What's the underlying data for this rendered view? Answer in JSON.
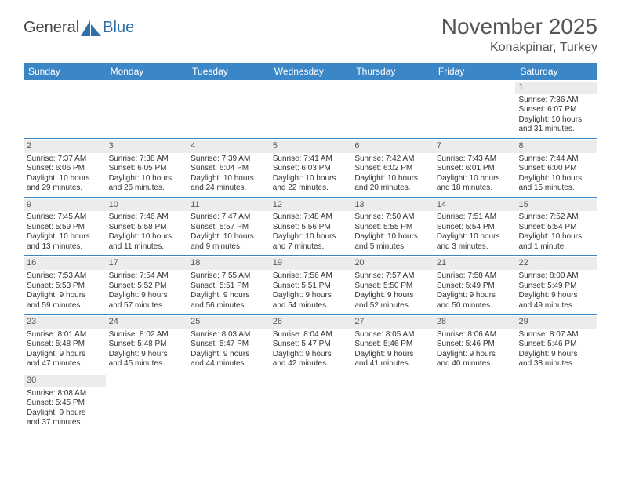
{
  "logo": {
    "text1": "General",
    "text2": "Blue"
  },
  "title": "November 2025",
  "location": "Konakpinar, Turkey",
  "colors": {
    "header_bg": "#3b86c6",
    "header_text": "#ffffff",
    "daynum_bg": "#ececec",
    "border": "#3b86c6",
    "body_text": "#333333"
  },
  "dayHeaders": [
    "Sunday",
    "Monday",
    "Tuesday",
    "Wednesday",
    "Thursday",
    "Friday",
    "Saturday"
  ],
  "weeks": [
    [
      null,
      null,
      null,
      null,
      null,
      null,
      {
        "n": "1",
        "sunrise": "Sunrise: 7:36 AM",
        "sunset": "Sunset: 6:07 PM",
        "d1": "Daylight: 10 hours",
        "d2": "and 31 minutes."
      }
    ],
    [
      {
        "n": "2",
        "sunrise": "Sunrise: 7:37 AM",
        "sunset": "Sunset: 6:06 PM",
        "d1": "Daylight: 10 hours",
        "d2": "and 29 minutes."
      },
      {
        "n": "3",
        "sunrise": "Sunrise: 7:38 AM",
        "sunset": "Sunset: 6:05 PM",
        "d1": "Daylight: 10 hours",
        "d2": "and 26 minutes."
      },
      {
        "n": "4",
        "sunrise": "Sunrise: 7:39 AM",
        "sunset": "Sunset: 6:04 PM",
        "d1": "Daylight: 10 hours",
        "d2": "and 24 minutes."
      },
      {
        "n": "5",
        "sunrise": "Sunrise: 7:41 AM",
        "sunset": "Sunset: 6:03 PM",
        "d1": "Daylight: 10 hours",
        "d2": "and 22 minutes."
      },
      {
        "n": "6",
        "sunrise": "Sunrise: 7:42 AM",
        "sunset": "Sunset: 6:02 PM",
        "d1": "Daylight: 10 hours",
        "d2": "and 20 minutes."
      },
      {
        "n": "7",
        "sunrise": "Sunrise: 7:43 AM",
        "sunset": "Sunset: 6:01 PM",
        "d1": "Daylight: 10 hours",
        "d2": "and 18 minutes."
      },
      {
        "n": "8",
        "sunrise": "Sunrise: 7:44 AM",
        "sunset": "Sunset: 6:00 PM",
        "d1": "Daylight: 10 hours",
        "d2": "and 15 minutes."
      }
    ],
    [
      {
        "n": "9",
        "sunrise": "Sunrise: 7:45 AM",
        "sunset": "Sunset: 5:59 PM",
        "d1": "Daylight: 10 hours",
        "d2": "and 13 minutes."
      },
      {
        "n": "10",
        "sunrise": "Sunrise: 7:46 AM",
        "sunset": "Sunset: 5:58 PM",
        "d1": "Daylight: 10 hours",
        "d2": "and 11 minutes."
      },
      {
        "n": "11",
        "sunrise": "Sunrise: 7:47 AM",
        "sunset": "Sunset: 5:57 PM",
        "d1": "Daylight: 10 hours",
        "d2": "and 9 minutes."
      },
      {
        "n": "12",
        "sunrise": "Sunrise: 7:48 AM",
        "sunset": "Sunset: 5:56 PM",
        "d1": "Daylight: 10 hours",
        "d2": "and 7 minutes."
      },
      {
        "n": "13",
        "sunrise": "Sunrise: 7:50 AM",
        "sunset": "Sunset: 5:55 PM",
        "d1": "Daylight: 10 hours",
        "d2": "and 5 minutes."
      },
      {
        "n": "14",
        "sunrise": "Sunrise: 7:51 AM",
        "sunset": "Sunset: 5:54 PM",
        "d1": "Daylight: 10 hours",
        "d2": "and 3 minutes."
      },
      {
        "n": "15",
        "sunrise": "Sunrise: 7:52 AM",
        "sunset": "Sunset: 5:54 PM",
        "d1": "Daylight: 10 hours",
        "d2": "and 1 minute."
      }
    ],
    [
      {
        "n": "16",
        "sunrise": "Sunrise: 7:53 AM",
        "sunset": "Sunset: 5:53 PM",
        "d1": "Daylight: 9 hours",
        "d2": "and 59 minutes."
      },
      {
        "n": "17",
        "sunrise": "Sunrise: 7:54 AM",
        "sunset": "Sunset: 5:52 PM",
        "d1": "Daylight: 9 hours",
        "d2": "and 57 minutes."
      },
      {
        "n": "18",
        "sunrise": "Sunrise: 7:55 AM",
        "sunset": "Sunset: 5:51 PM",
        "d1": "Daylight: 9 hours",
        "d2": "and 56 minutes."
      },
      {
        "n": "19",
        "sunrise": "Sunrise: 7:56 AM",
        "sunset": "Sunset: 5:51 PM",
        "d1": "Daylight: 9 hours",
        "d2": "and 54 minutes."
      },
      {
        "n": "20",
        "sunrise": "Sunrise: 7:57 AM",
        "sunset": "Sunset: 5:50 PM",
        "d1": "Daylight: 9 hours",
        "d2": "and 52 minutes."
      },
      {
        "n": "21",
        "sunrise": "Sunrise: 7:58 AM",
        "sunset": "Sunset: 5:49 PM",
        "d1": "Daylight: 9 hours",
        "d2": "and 50 minutes."
      },
      {
        "n": "22",
        "sunrise": "Sunrise: 8:00 AM",
        "sunset": "Sunset: 5:49 PM",
        "d1": "Daylight: 9 hours",
        "d2": "and 49 minutes."
      }
    ],
    [
      {
        "n": "23",
        "sunrise": "Sunrise: 8:01 AM",
        "sunset": "Sunset: 5:48 PM",
        "d1": "Daylight: 9 hours",
        "d2": "and 47 minutes."
      },
      {
        "n": "24",
        "sunrise": "Sunrise: 8:02 AM",
        "sunset": "Sunset: 5:48 PM",
        "d1": "Daylight: 9 hours",
        "d2": "and 45 minutes."
      },
      {
        "n": "25",
        "sunrise": "Sunrise: 8:03 AM",
        "sunset": "Sunset: 5:47 PM",
        "d1": "Daylight: 9 hours",
        "d2": "and 44 minutes."
      },
      {
        "n": "26",
        "sunrise": "Sunrise: 8:04 AM",
        "sunset": "Sunset: 5:47 PM",
        "d1": "Daylight: 9 hours",
        "d2": "and 42 minutes."
      },
      {
        "n": "27",
        "sunrise": "Sunrise: 8:05 AM",
        "sunset": "Sunset: 5:46 PM",
        "d1": "Daylight: 9 hours",
        "d2": "and 41 minutes."
      },
      {
        "n": "28",
        "sunrise": "Sunrise: 8:06 AM",
        "sunset": "Sunset: 5:46 PM",
        "d1": "Daylight: 9 hours",
        "d2": "and 40 minutes."
      },
      {
        "n": "29",
        "sunrise": "Sunrise: 8:07 AM",
        "sunset": "Sunset: 5:46 PM",
        "d1": "Daylight: 9 hours",
        "d2": "and 38 minutes."
      }
    ],
    [
      {
        "n": "30",
        "sunrise": "Sunrise: 8:08 AM",
        "sunset": "Sunset: 5:45 PM",
        "d1": "Daylight: 9 hours",
        "d2": "and 37 minutes."
      },
      null,
      null,
      null,
      null,
      null,
      null
    ]
  ]
}
